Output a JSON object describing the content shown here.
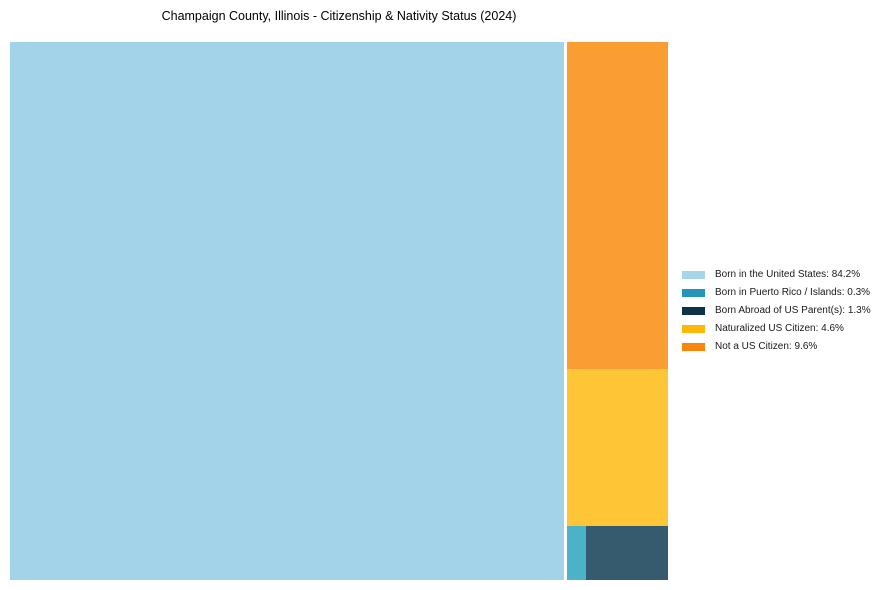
{
  "page": {
    "background": "#ffffff"
  },
  "chart_data": {
    "type": "treemap",
    "title": "Champaign County, Illinois - Citizenship & Nativity Status (2024)",
    "categories": [
      "Born in the United States",
      "Born in Puerto Rico / Islands",
      "Born Abroad of US Parent(s)",
      "Naturalized US Citizen",
      "Not a US Citizen"
    ],
    "values": [
      84.2,
      0.3,
      1.3,
      4.6,
      9.6
    ],
    "unit": "%",
    "block_colors": [
      "#a3d3e9",
      "#4bb2c7",
      "#365a6e",
      "#fec636",
      "#fa9d33"
    ],
    "legend_colors": [
      "#a6d4e8",
      "#2396b5",
      "#0d3348",
      "#feb808",
      "#f8860d"
    ],
    "legend_position": "right",
    "layout_hint": "largest category fills full-height left slice; remainder in right column: Not a US Citizen (top), Naturalized US Citizen (middle), bottom row split into Born in Puerto Rico / Islands (left) and Born Abroad of US Parent(s) (right)"
  },
  "legend": {
    "items": [
      {
        "text": "Born in the United States: 84.2%"
      },
      {
        "text": "Born in Puerto Rico / Islands: 0.3%"
      },
      {
        "text": "Born Abroad of US Parent(s): 1.3%"
      },
      {
        "text": "Naturalized US Citizen: 4.6%"
      },
      {
        "text": "Not a US Citizen: 9.6%"
      }
    ]
  }
}
